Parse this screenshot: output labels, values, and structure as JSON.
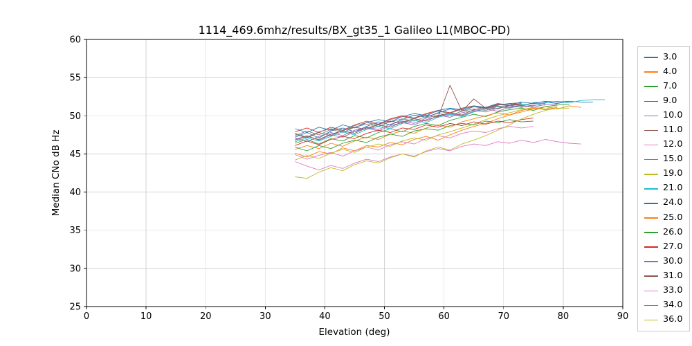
{
  "chart_data": {
    "type": "line",
    "title": "1114_469.6mhz/results/BX_gt35_1 Galileo L1(MBOC-PD)",
    "xlabel": "Elevation (deg)",
    "ylabel": "Median CNo dB Hz",
    "xlim": [
      0,
      90
    ],
    "ylim": [
      25,
      60
    ],
    "xticks": [
      0,
      10,
      20,
      30,
      40,
      50,
      60,
      70,
      80,
      90
    ],
    "yticks": [
      25,
      30,
      35,
      40,
      45,
      50,
      55,
      60
    ],
    "grid": true,
    "legend_position": "right-outside",
    "series": [
      {
        "name": "3.0",
        "color": "#1f77b4",
        "x_start": 35,
        "x_step": 2,
        "values": [
          47.2,
          47.8,
          47.1,
          48.0,
          48.4,
          47.9,
          48.6,
          49.2,
          48.8,
          49.5,
          50.1,
          49.8,
          50.4,
          50.9,
          50.6,
          51.2,
          51.0,
          51.4,
          51.6,
          51.3,
          51.7,
          51.8,
          51.6,
          51.9,
          51.8,
          51.8
        ]
      },
      {
        "name": "4.0",
        "color": "#ff7f0e",
        "x_start": 35,
        "x_step": 2,
        "values": [
          45.1,
          44.6,
          45.3,
          45.0,
          45.8,
          45.4,
          46.1,
          45.9,
          46.5,
          46.2,
          46.9,
          47.3,
          46.8,
          47.5,
          48.1,
          48.6,
          49.0,
          49.6,
          50.1,
          50.5,
          50.9,
          51.2,
          50.9,
          51.3,
          51.1
        ]
      },
      {
        "name": "7.0",
        "color": "#2ca02c",
        "x_start": 35,
        "x_step": 2,
        "values": [
          46.4,
          46.9,
          46.3,
          47.0,
          46.7,
          47.4,
          47.1,
          47.8,
          48.3,
          47.9,
          48.6,
          49.0,
          48.7,
          49.4,
          49.8,
          50.2,
          49.9,
          50.5,
          50.8,
          51.0,
          50.7,
          51.2,
          51.4,
          51.5
        ]
      },
      {
        "name": "9.0",
        "color": "#d62728",
        "x_start": 35,
        "x_step": 2,
        "values": [
          47.9,
          48.4,
          47.8,
          48.5,
          48.1,
          48.8,
          49.3,
          48.9,
          49.6,
          50.0,
          49.7,
          50.3,
          50.7,
          50.4,
          51.0,
          51.3,
          51.0,
          51.5,
          51.3,
          51.5
        ]
      },
      {
        "name": "10.0",
        "color": "#9467bd",
        "x_start": 35,
        "x_step": 2,
        "values": [
          46.9,
          47.4,
          46.8,
          47.5,
          47.2,
          47.9,
          48.4,
          48.0,
          48.7,
          49.1,
          48.8,
          49.5,
          49.9,
          50.3,
          50.0,
          50.6,
          50.9,
          50.6,
          51.1,
          51.4,
          51.1,
          51.5,
          51.5
        ]
      },
      {
        "name": "11.0",
        "color": "#8c564b",
        "x_start": 35,
        "x_step": 2,
        "values": [
          47.6,
          47.1,
          47.8,
          47.4,
          48.1,
          48.5,
          48.2,
          48.9,
          49.3,
          49.0,
          49.7,
          50.1,
          49.8,
          54.0,
          50.6,
          52.2,
          51.0,
          51.4,
          51.6,
          51.7
        ]
      },
      {
        "name": "12.0",
        "color": "#e377c2",
        "x_start": 35,
        "x_step": 2,
        "values": [
          44.9,
          44.3,
          44.8,
          45.2,
          44.7,
          45.4,
          45.9,
          45.5,
          46.2,
          46.6,
          46.3,
          47.0,
          47.4,
          47.1,
          47.7,
          48.0,
          47.8,
          48.3,
          48.6,
          48.4,
          48.6
        ]
      },
      {
        "name": "15.0",
        "color": "#7f7f7f",
        "x_start": 35,
        "x_step": 2,
        "values": [
          47.4,
          48.0,
          47.5,
          48.2,
          47.8,
          48.5,
          48.9,
          48.6,
          49.2,
          49.6,
          49.3,
          49.9,
          50.3,
          50.0,
          50.6,
          50.9,
          50.7,
          51.2,
          51.0,
          51.4,
          51.6,
          51.6
        ]
      },
      {
        "name": "19.0",
        "color": "#bcbd22",
        "x_start": 35,
        "x_step": 2,
        "values": [
          44.2,
          44.8,
          44.4,
          45.1,
          45.6,
          45.2,
          45.9,
          46.3,
          46.0,
          46.7,
          47.1,
          46.8,
          47.5,
          47.9,
          48.4,
          48.9,
          49.5,
          50.0,
          50.4,
          50.8,
          51.1,
          50.9,
          51.3
        ]
      },
      {
        "name": "21.0",
        "color": "#17becf",
        "x_start": 35,
        "x_step": 2,
        "values": [
          46.6,
          47.1,
          46.7,
          47.3,
          47.9,
          47.5,
          48.2,
          48.6,
          48.3,
          49.0,
          49.4,
          49.1,
          49.8,
          50.2,
          49.9,
          50.5,
          50.9,
          51.2,
          51.0,
          51.5,
          51.3,
          51.7,
          51.9,
          51.7,
          52.0,
          52.1,
          52.1
        ]
      },
      {
        "name": "24.0",
        "color": "#1f77b4",
        "x_start": 35,
        "x_step": 2,
        "values": [
          48.3,
          47.8,
          48.5,
          48.1,
          48.8,
          48.4,
          49.1,
          49.5,
          49.2,
          49.9,
          50.3,
          50.0,
          50.7,
          51.0,
          50.8,
          51.3,
          51.1,
          51.6,
          51.4,
          51.8,
          51.6,
          51.9,
          51.8,
          51.9
        ]
      },
      {
        "name": "25.0",
        "color": "#ff7f0e",
        "x_start": 35,
        "x_step": 2,
        "values": [
          45.6,
          46.1,
          45.7,
          46.4,
          46.0,
          46.7,
          47.2,
          46.9,
          47.6,
          48.0,
          47.7,
          48.4,
          48.8,
          48.5,
          49.2,
          49.6,
          50.0,
          50.4,
          50.1,
          50.7,
          51.0,
          50.8,
          51.1
        ]
      },
      {
        "name": "26.0",
        "color": "#2ca02c",
        "x_start": 35,
        "x_step": 2,
        "values": [
          45.9,
          45.4,
          46.1,
          45.7,
          46.4,
          46.8,
          46.5,
          47.2,
          47.6,
          47.3,
          48.0,
          48.3,
          48.1,
          48.7,
          49.0,
          48.8,
          49.3,
          49.1,
          49.5,
          49.2,
          49.3
        ]
      },
      {
        "name": "27.0",
        "color": "#d62728",
        "x_start": 35,
        "x_step": 2,
        "values": [
          46.1,
          46.7,
          46.2,
          46.9,
          47.3,
          47.0,
          47.7,
          48.1,
          47.8,
          48.4,
          48.2,
          48.8,
          48.5,
          49.0,
          48.7,
          49.2,
          48.9,
          49.3,
          49.1,
          49.5,
          49.7
        ]
      },
      {
        "name": "30.0",
        "color": "#9467bd",
        "x_start": 35,
        "x_step": 2,
        "values": [
          47.1,
          46.6,
          47.3,
          47.8,
          47.4,
          48.1,
          48.5,
          48.2,
          48.9,
          49.3,
          49.0,
          49.7,
          50.1,
          49.8,
          50.4,
          50.7,
          50.5,
          51.0,
          51.3,
          51.1,
          51.4,
          51.4
        ]
      },
      {
        "name": "31.0",
        "color": "#8c564b",
        "x_start": 35,
        "x_step": 2,
        "values": [
          46.8,
          47.3,
          46.9,
          47.6,
          48.0,
          47.7,
          48.4,
          48.8,
          48.5,
          49.2,
          49.6,
          49.3,
          50.0,
          50.4,
          50.1,
          50.8,
          51.1,
          50.9,
          51.4,
          51.6
        ]
      },
      {
        "name": "33.0",
        "color": "#e377c2",
        "x_start": 35,
        "x_step": 2,
        "values": [
          44.0,
          43.4,
          42.9,
          43.5,
          43.1,
          43.8,
          44.3,
          44.0,
          44.6,
          45.0,
          44.7,
          45.3,
          45.7,
          45.4,
          46.0,
          46.3,
          46.1,
          46.6,
          46.4,
          46.8,
          46.5,
          46.9,
          46.6,
          46.4,
          46.3
        ]
      },
      {
        "name": "34.0",
        "color": "#7f7f7f",
        "x_start": 35,
        "x_step": 2,
        "values": [
          47.7,
          47.2,
          47.9,
          48.3,
          48.0,
          48.7,
          49.1,
          48.8,
          49.5,
          49.9,
          49.6,
          50.2,
          50.6,
          50.3,
          50.9,
          51.2,
          50.9,
          51.3,
          51.1,
          51.2,
          51.2
        ]
      },
      {
        "name": "36.0",
        "color": "#bcbd22",
        "x_start": 35,
        "x_step": 2,
        "values": [
          42.0,
          41.8,
          42.6,
          43.2,
          42.8,
          43.6,
          44.1,
          43.8,
          44.5,
          45.0,
          44.6,
          45.4,
          45.9,
          45.5,
          46.3,
          46.8,
          47.4,
          48.1,
          48.8,
          49.6,
          50.2,
          50.7,
          51.0,
          51.0
        ]
      }
    ]
  }
}
